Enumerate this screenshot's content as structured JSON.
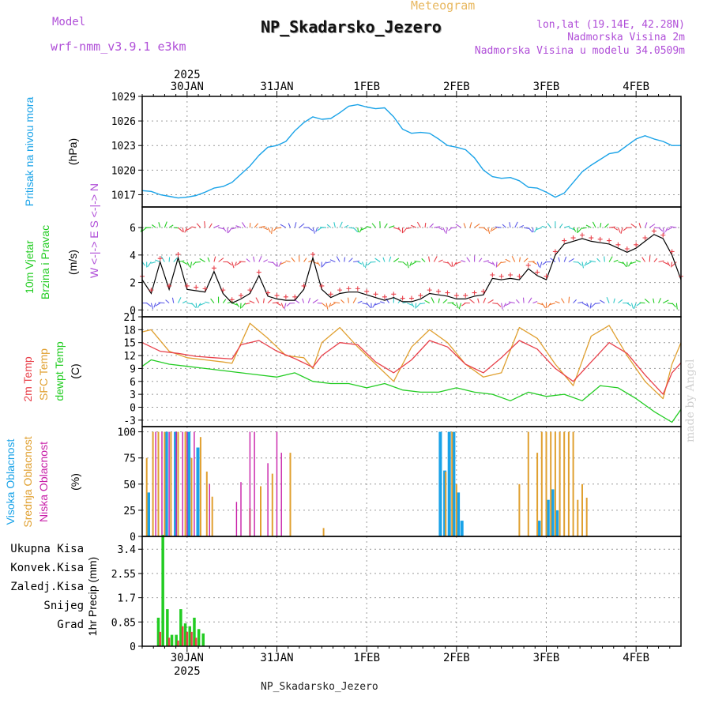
{
  "header": {
    "meteogram_label": "Meteogram",
    "station_title": "NP_Skadarsko_Jezero",
    "model_label": "Model",
    "model_name": "wrf-nmm_v3.9.1 e3km",
    "lonlat": "lon,lat (19.14E, 42.28N)",
    "altitude": "Nadmorska Visina 2m",
    "model_altitude": "Nadmorska Visina u modelu 34.0509m"
  },
  "watermark": "made by Angel",
  "footer": {
    "station": "NP_Skadarsko_Jezero"
  },
  "colors": {
    "pressure": "#1aa3e8",
    "wind_speed_label": "#22cc22",
    "wind_dir_label": "#22cc22",
    "temp2m": "#e8404a",
    "sfc_temp": "#e0a030",
    "dewpoint": "#22cc22",
    "high_cloud": "#1aa3e8",
    "mid_cloud": "#e0a030",
    "low_cloud": "#c81fa8",
    "total_precip": "#22cc22",
    "conv_precip": "#e8404a",
    "frozen_precip": "#f07830",
    "snow": "#5a5ae8",
    "graupel": "#30c8c8",
    "compass": "#b04fd8"
  },
  "time_axis": {
    "top_year": "2025",
    "bottom_year": "2025",
    "days": [
      "30JAN",
      "31JAN",
      "1FEB",
      "2FEB",
      "3FEB",
      "4FEB"
    ],
    "day_positions": [
      0.5,
      1.5,
      2.5,
      3.5,
      4.5,
      5.5
    ],
    "range": [
      0,
      6.0
    ]
  },
  "chart_data": [
    {
      "type": "line",
      "title": "Pritisak na nivou mora",
      "ylabel": "(hPa)",
      "ylim": [
        1015.5,
        1029
      ],
      "yticks": [
        1017,
        1020,
        1023,
        1026,
        1029
      ],
      "series": [
        {
          "name": "Pritisak na nivou mora",
          "x": [
            0.0,
            0.1,
            0.2,
            0.3,
            0.4,
            0.5,
            0.6,
            0.7,
            0.8,
            0.9,
            1.0,
            1.1,
            1.2,
            1.3,
            1.4,
            1.5,
            1.6,
            1.7,
            1.8,
            1.9,
            2.0,
            2.1,
            2.2,
            2.3,
            2.4,
            2.5,
            2.6,
            2.7,
            2.8,
            2.9,
            3.0,
            3.1,
            3.2,
            3.3,
            3.4,
            3.5,
            3.6,
            3.7,
            3.8,
            3.9,
            4.0,
            4.1,
            4.2,
            4.3,
            4.4,
            4.5,
            4.6,
            4.7,
            4.8,
            4.9,
            5.0,
            5.1,
            5.2,
            5.3,
            5.4,
            5.5,
            5.6,
            5.7,
            5.8,
            5.9,
            6.0
          ],
          "values": [
            1017.5,
            1017.4,
            1017.0,
            1016.8,
            1016.6,
            1016.7,
            1016.9,
            1017.3,
            1017.8,
            1018.0,
            1018.5,
            1019.5,
            1020.5,
            1021.8,
            1022.8,
            1023.0,
            1023.5,
            1024.8,
            1025.8,
            1026.5,
            1026.2,
            1026.3,
            1027.0,
            1027.8,
            1028.0,
            1027.7,
            1027.5,
            1027.6,
            1026.5,
            1025.0,
            1024.5,
            1024.6,
            1024.5,
            1023.8,
            1023.0,
            1022.8,
            1022.5,
            1021.5,
            1020.0,
            1019.2,
            1019.0,
            1019.1,
            1018.7,
            1017.9,
            1017.8,
            1017.3,
            1016.7,
            1017.2,
            1018.5,
            1019.8,
            1020.6,
            1021.3,
            1022.0,
            1022.2,
            1023.0,
            1023.8,
            1024.2,
            1023.8,
            1023.5,
            1023.0,
            1023.0
          ]
        }
      ]
    },
    {
      "type": "line",
      "title": "10m Vjetar Brzina i Pravac",
      "ylabel": "(m/s)",
      "ylim": [
        -0.5,
        7.5
      ],
      "yticks": [
        0,
        2,
        4,
        6
      ],
      "compass_label": "W <-|-> E  S <-|-> N",
      "series": [
        {
          "name": "Brzina vjetra",
          "x": [
            0.0,
            0.1,
            0.2,
            0.3,
            0.4,
            0.5,
            0.6,
            0.7,
            0.8,
            0.9,
            1.0,
            1.1,
            1.2,
            1.3,
            1.4,
            1.5,
            1.6,
            1.7,
            1.8,
            1.9,
            2.0,
            2.1,
            2.2,
            2.3,
            2.4,
            2.5,
            2.6,
            2.7,
            2.8,
            2.9,
            3.0,
            3.1,
            3.2,
            3.3,
            3.4,
            3.5,
            3.6,
            3.7,
            3.8,
            3.9,
            4.0,
            4.1,
            4.2,
            4.3,
            4.4,
            4.5,
            4.6,
            4.7,
            4.8,
            4.9,
            5.0,
            5.1,
            5.2,
            5.3,
            5.4,
            5.5,
            5.6,
            5.7,
            5.8,
            5.9,
            6.0
          ],
          "values": [
            2.2,
            1.2,
            3.5,
            1.5,
            3.8,
            1.5,
            1.4,
            1.3,
            2.8,
            1.2,
            0.5,
            0.8,
            1.2,
            2.5,
            1.0,
            0.8,
            0.7,
            0.7,
            1.5,
            3.8,
            1.5,
            0.9,
            1.2,
            1.3,
            1.3,
            1.1,
            0.9,
            0.7,
            0.9,
            0.6,
            0.6,
            0.8,
            1.2,
            1.1,
            1.0,
            0.8,
            0.8,
            1.0,
            1.1,
            2.3,
            2.2,
            2.3,
            2.2,
            3.0,
            2.5,
            2.2,
            4.0,
            4.8,
            5.0,
            5.2,
            5.0,
            4.9,
            4.8,
            4.5,
            4.2,
            4.5,
            5.0,
            5.5,
            5.2,
            4.0,
            2.2
          ]
        }
      ],
      "direction_rows_ms": [
        0.5,
        3.5,
        6.0
      ]
    },
    {
      "type": "line",
      "title": "2m Temp / SFC Temp / dewpt Temp",
      "ylabel": "(C)",
      "ylim": [
        -4.5,
        21
      ],
      "yticks": [
        -3,
        0,
        3,
        6,
        9,
        12,
        15,
        18,
        21
      ],
      "series": [
        {
          "name": "2m Temp",
          "x": [
            0.0,
            0.2,
            0.4,
            0.6,
            0.8,
            1.0,
            1.1,
            1.3,
            1.5,
            1.7,
            1.9,
            2.0,
            2.2,
            2.4,
            2.6,
            2.8,
            3.0,
            3.2,
            3.4,
            3.6,
            3.8,
            4.0,
            4.2,
            4.4,
            4.6,
            4.8,
            5.0,
            5.2,
            5.4,
            5.6,
            5.8,
            5.9,
            6.0
          ],
          "values": [
            15,
            13,
            12.5,
            11.8,
            11.5,
            11.2,
            14.5,
            15.5,
            13,
            11.3,
            9.3,
            12,
            15,
            14.5,
            10.5,
            8,
            11,
            15.5,
            14,
            10,
            8,
            11.5,
            15.5,
            13.5,
            9,
            6,
            10.5,
            15,
            12.5,
            7.5,
            3,
            8,
            10.3
          ]
        },
        {
          "name": "SFC Temp",
          "x": [
            0.0,
            0.1,
            0.3,
            0.5,
            0.7,
            0.9,
            1.0,
            1.2,
            1.4,
            1.6,
            1.8,
            1.9,
            2.0,
            2.2,
            2.4,
            2.6,
            2.8,
            3.0,
            3.2,
            3.4,
            3.6,
            3.8,
            4.0,
            4.2,
            4.4,
            4.6,
            4.8,
            5.0,
            5.2,
            5.4,
            5.6,
            5.8,
            5.9,
            6.0
          ],
          "values": [
            17.5,
            18,
            13,
            11.5,
            11,
            10.5,
            10.2,
            19.5,
            16,
            12,
            11.5,
            9,
            15,
            18.5,
            14,
            10,
            6,
            14,
            18,
            15,
            10,
            7,
            8,
            18.5,
            16,
            10,
            5,
            16.5,
            19,
            12,
            6,
            2,
            10,
            15
          ]
        },
        {
          "name": "dewpt Temp",
          "x": [
            0.0,
            0.1,
            0.3,
            0.5,
            0.7,
            0.9,
            1.1,
            1.3,
            1.5,
            1.7,
            1.9,
            2.1,
            2.3,
            2.5,
            2.7,
            2.9,
            3.1,
            3.3,
            3.5,
            3.7,
            3.9,
            4.1,
            4.3,
            4.5,
            4.7,
            4.9,
            5.1,
            5.3,
            5.5,
            5.7,
            5.9,
            6.0
          ],
          "values": [
            9.5,
            11,
            10,
            9.5,
            9,
            8.5,
            8,
            7.5,
            7,
            8,
            6,
            5.5,
            5.5,
            4.5,
            5.5,
            4,
            3.5,
            3.5,
            4.5,
            3.5,
            3,
            1.5,
            3.5,
            2.5,
            3,
            1.5,
            5,
            4.5,
            2,
            -1,
            -3.5,
            -0.5
          ]
        }
      ]
    },
    {
      "type": "bar",
      "title": "Visoka / Srednja / Niska Oblacnost",
      "ylabel": "(%)",
      "ylim": [
        0,
        105
      ],
      "yticks": [
        0,
        25,
        50,
        75,
        100
      ],
      "series": [
        {
          "name": "Visoka Oblacnost",
          "x": [
            0.07,
            0.27,
            0.37,
            0.52,
            0.62,
            3.32,
            3.37,
            3.42,
            3.47,
            3.52,
            3.56,
            4.42,
            4.52,
            4.57,
            4.62
          ],
          "values": [
            42,
            100,
            100,
            100,
            85,
            100,
            63,
            100,
            100,
            42,
            15,
            15,
            35,
            45,
            25
          ]
        },
        {
          "name": "Srednja Oblacnost",
          "x": [
            0.05,
            0.12,
            0.18,
            0.25,
            0.32,
            0.4,
            0.48,
            0.55,
            0.65,
            0.72,
            0.78,
            1.2,
            1.32,
            1.45,
            1.65,
            2.02,
            3.38,
            3.45,
            3.5,
            4.2,
            4.3,
            4.4,
            4.45,
            4.5,
            4.55,
            4.6,
            4.65,
            4.7,
            4.75,
            4.8,
            4.85,
            4.9,
            4.95
          ],
          "values": [
            75,
            100,
            100,
            100,
            100,
            100,
            100,
            75,
            95,
            62,
            38,
            27,
            48,
            60,
            80,
            8,
            62,
            100,
            50,
            50,
            100,
            80,
            100,
            100,
            100,
            100,
            100,
            100,
            100,
            100,
            35,
            50,
            37
          ]
        },
        {
          "name": "Niska Oblacnost",
          "x": [
            0.15,
            0.22,
            0.3,
            0.38,
            0.45,
            0.5,
            0.58,
            0.75,
            1.05,
            1.1,
            1.2,
            1.25,
            1.4,
            1.5,
            1.55
          ],
          "values": [
            100,
            100,
            100,
            100,
            100,
            100,
            100,
            50,
            33,
            52,
            100,
            100,
            70,
            100,
            80
          ]
        }
      ]
    },
    {
      "type": "bar",
      "title": "1hr Precip",
      "ylabel": "1hr Precip (mm)",
      "ylim": [
        0,
        3.85
      ],
      "yticks": [
        0,
        0.85,
        1.7,
        2.55,
        3.4
      ],
      "ytick_labels": [
        "0",
        "0.85",
        "1.7",
        "2.55",
        "3.4"
      ],
      "legend": [
        "Ukupna Kisa",
        "Konvek.Kisa",
        "Zaledj.Kisa",
        "Snijeg",
        "Grad"
      ],
      "series": [
        {
          "name": "Ukupna Kisa",
          "x": [
            0.18,
            0.23,
            0.28,
            0.33,
            0.38,
            0.43,
            0.48,
            0.53,
            0.58,
            0.63,
            0.68
          ],
          "values": [
            1.0,
            3.9,
            1.3,
            0.4,
            0.4,
            1.3,
            0.8,
            0.7,
            1.0,
            0.6,
            0.45
          ]
        },
        {
          "name": "Konvek.Kisa",
          "x": [
            0.2,
            0.3,
            0.4,
            0.45,
            0.5,
            0.55,
            0.6
          ],
          "values": [
            0.5,
            0.3,
            0.2,
            0.7,
            0.5,
            0.5,
            0.3
          ]
        }
      ]
    }
  ]
}
